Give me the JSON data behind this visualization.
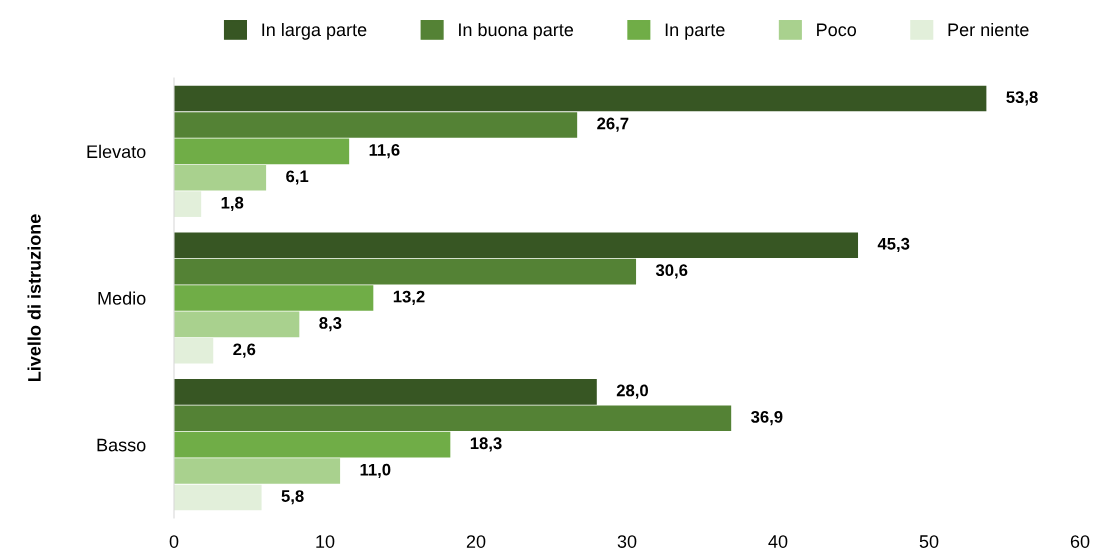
{
  "chart_data": {
    "type": "bar",
    "orientation": "horizontal",
    "ylabel": "Livello di istruzione",
    "categories": [
      "Elevato",
      "Medio",
      "Basso"
    ],
    "series": [
      {
        "name": "In larga parte",
        "color": "#375623",
        "values": [
          53.8,
          45.3,
          28.0
        ],
        "value_labels": [
          "53,8",
          "45,3",
          "28,0"
        ]
      },
      {
        "name": "In buona parte",
        "color": "#548235",
        "values": [
          26.7,
          30.6,
          36.9
        ],
        "value_labels": [
          "26,7",
          "30,6",
          "36,9"
        ]
      },
      {
        "name": "In parte",
        "color": "#70ad47",
        "values": [
          11.6,
          13.2,
          18.3
        ],
        "value_labels": [
          "11,6",
          "13,2",
          "18,3"
        ]
      },
      {
        "name": "Poco",
        "color": "#a9d18e",
        "values": [
          6.1,
          8.3,
          11.0
        ],
        "value_labels": [
          "6,1",
          "8,3",
          "11,0"
        ]
      },
      {
        "name": "Per niente",
        "color": "#e2efda",
        "values": [
          1.8,
          2.6,
          5.8
        ],
        "value_labels": [
          "1,8",
          "2,6",
          "5,8"
        ]
      }
    ],
    "xlim": [
      0,
      60
    ],
    "xticks": [
      0,
      10,
      20,
      30,
      40,
      50,
      60
    ],
    "grid": false,
    "legend": "top"
  }
}
